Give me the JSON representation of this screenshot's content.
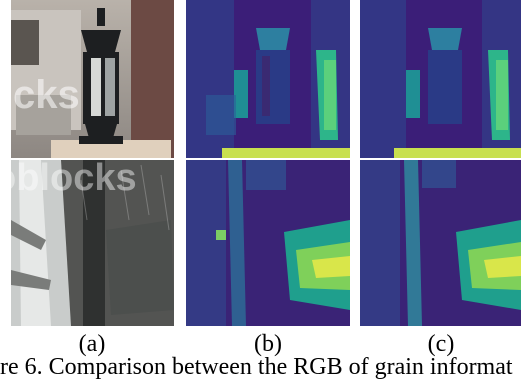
{
  "figure": {
    "column_labels": [
      "(a)",
      "(b)",
      "(c)"
    ],
    "caption_fragment": "re 6.  Comparison between the RGB of grain informat"
  },
  "panels": {
    "a": {
      "watermark_top": "cks",
      "watermark_bottom": "oblocks"
    }
  },
  "colors": {
    "heatmap_low": "#3b1e78",
    "heatmap_mid": "#2c6fa0",
    "heatmap_high": "#d9e64a"
  }
}
